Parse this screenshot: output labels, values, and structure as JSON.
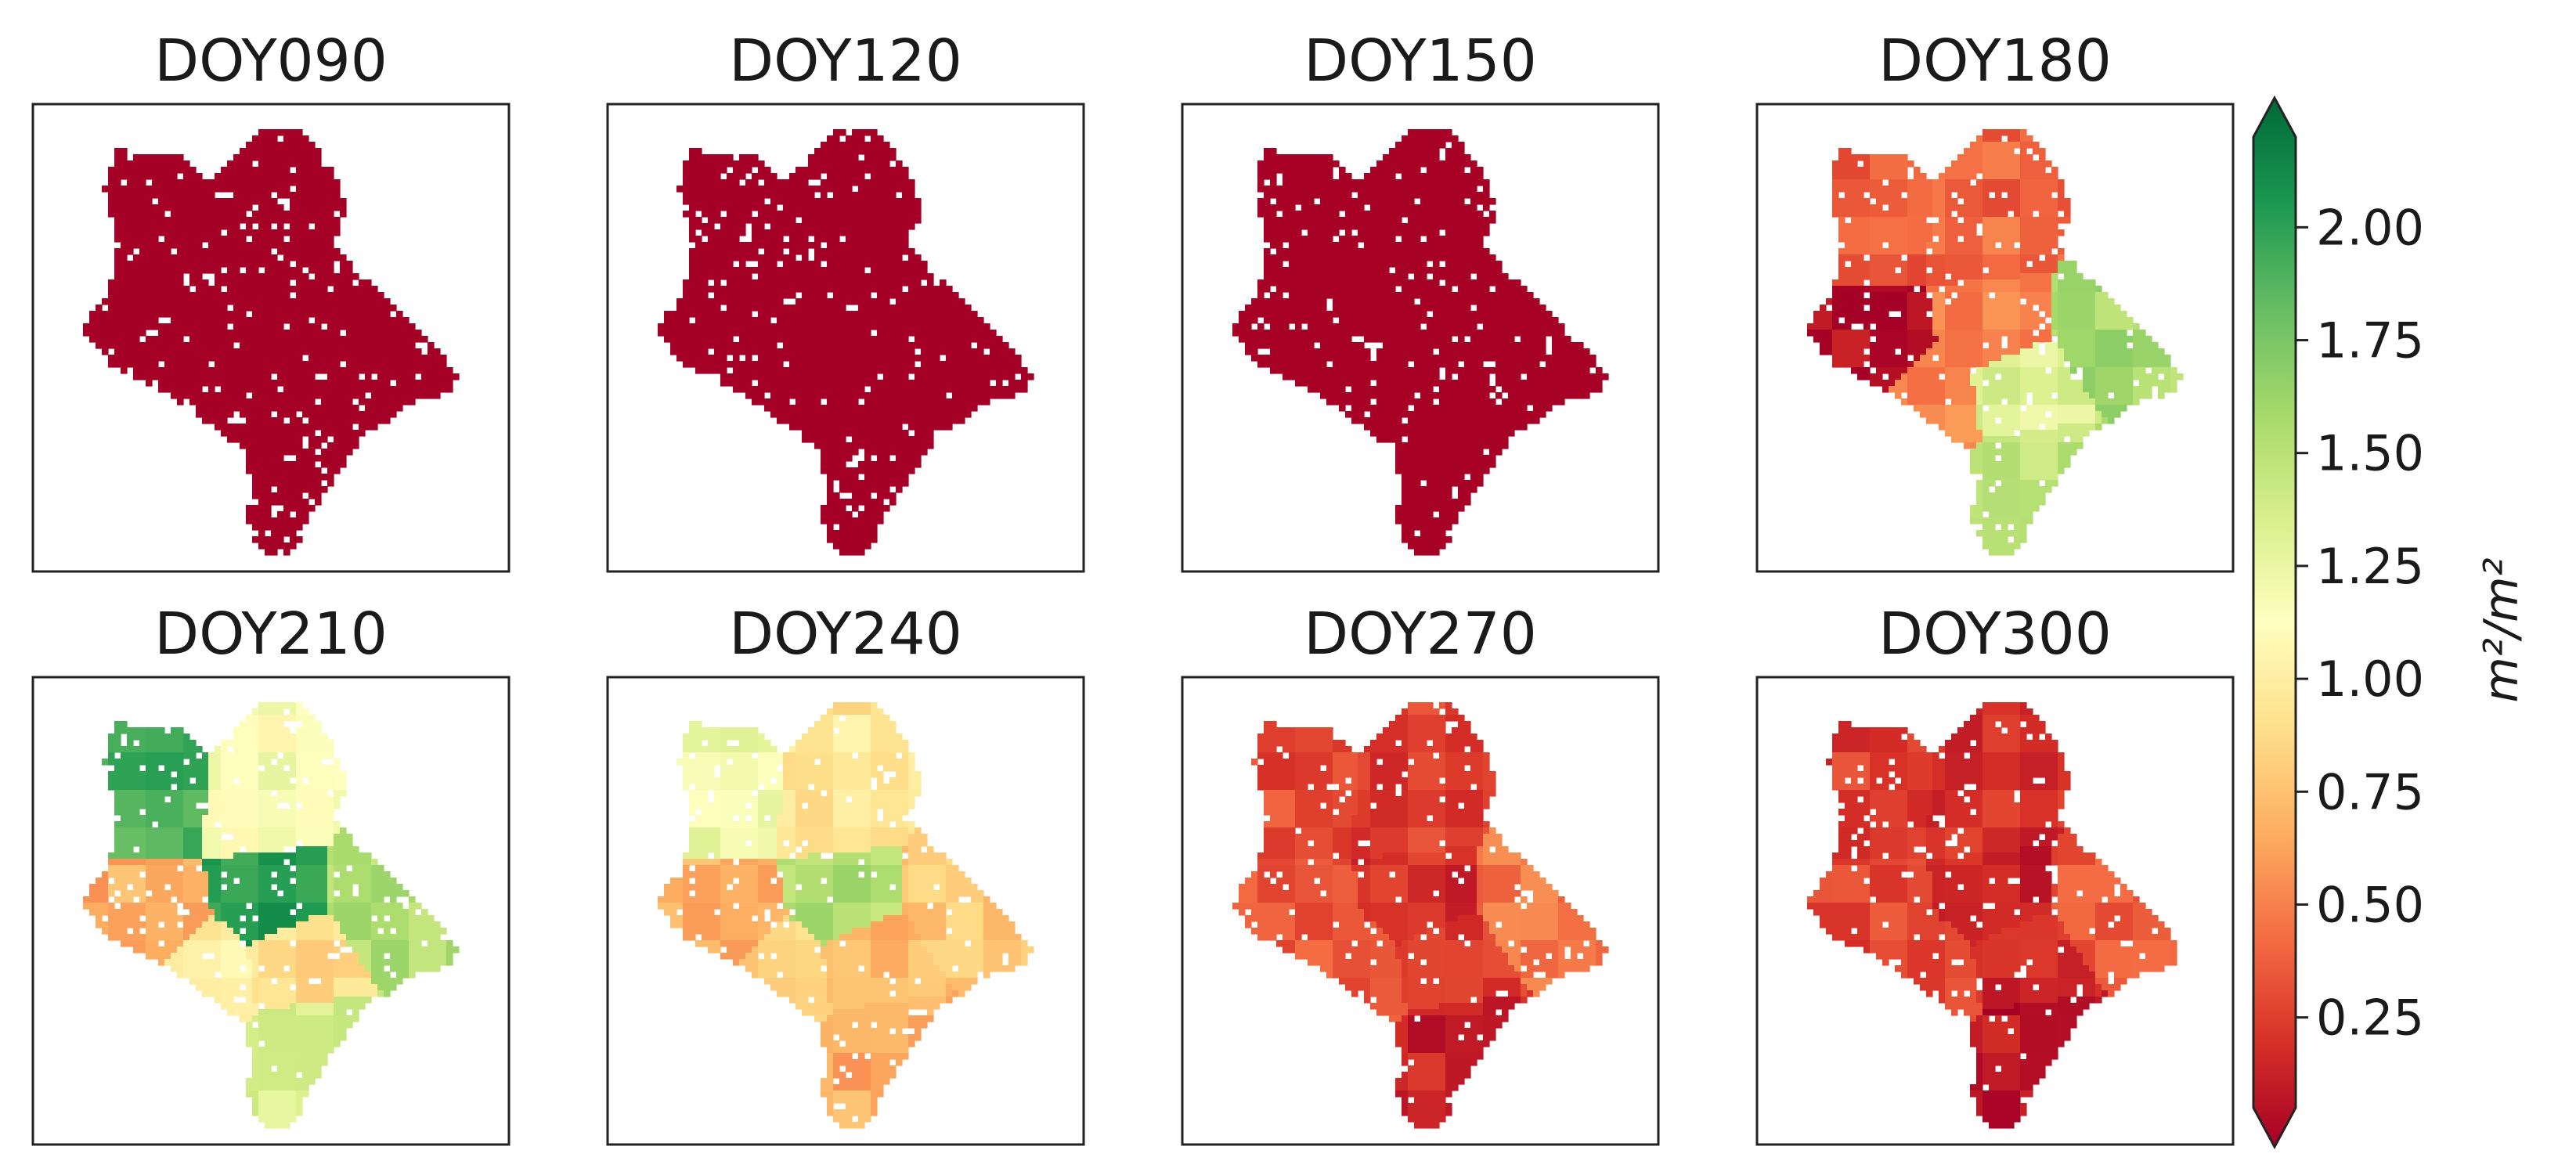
{
  "chart_data": {
    "type": "heatmap",
    "layout": {
      "rows": 2,
      "cols": 4
    },
    "panels": [
      {
        "title": "DOY090",
        "pattern": "uniform",
        "base_value": 0.05,
        "zone_values": [
          0.05,
          0.05,
          0.05,
          0.05,
          0.05,
          0.05,
          0.05,
          0.05
        ]
      },
      {
        "title": "DOY120",
        "pattern": "uniform",
        "base_value": 0.05,
        "zone_values": [
          0.05,
          0.05,
          0.05,
          0.05,
          0.05,
          0.05,
          0.05,
          0.05
        ]
      },
      {
        "title": "DOY150",
        "pattern": "uniform",
        "base_value": 0.06,
        "zone_values": [
          0.06,
          0.06,
          0.06,
          0.06,
          0.08,
          0.06,
          0.06,
          0.06
        ]
      },
      {
        "title": "DOY180",
        "pattern": "zonal",
        "base_value": 0.4,
        "zone_values": [
          0.4,
          0.45,
          0.1,
          0.55,
          1.55,
          1.3,
          1.45,
          0.55
        ]
      },
      {
        "title": "DOY210",
        "pattern": "zonal",
        "base_value": 0.8,
        "zone_values": [
          1.85,
          1.15,
          0.7,
          1.95,
          1.5,
          0.9,
          1.35,
          1.0
        ]
      },
      {
        "title": "DOY240",
        "pattern": "zonal",
        "base_value": 0.85,
        "zone_values": [
          1.2,
          0.95,
          0.7,
          1.5,
          0.8,
          0.75,
          0.7,
          0.85
        ]
      },
      {
        "title": "DOY270",
        "pattern": "zonal",
        "base_value": 0.35,
        "zone_values": [
          0.35,
          0.3,
          0.4,
          0.25,
          0.5,
          0.3,
          0.2,
          0.4
        ]
      },
      {
        "title": "DOY300",
        "pattern": "zonal",
        "base_value": 0.3,
        "zone_values": [
          0.3,
          0.25,
          0.35,
          0.2,
          0.4,
          0.25,
          0.15,
          0.35
        ]
      }
    ],
    "colorbar": {
      "colormap": "RdYlGn",
      "vmin": 0.05,
      "vmax": 2.2,
      "extend": "both",
      "ticks": [
        0.25,
        0.5,
        0.75,
        1.0,
        1.25,
        1.5,
        1.75,
        2.0
      ],
      "tick_labels": [
        "0.25",
        "0.50",
        "0.75",
        "1.00",
        "1.25",
        "1.50",
        "1.75",
        "2.00"
      ],
      "unit_label": "m²/m²",
      "colors": [
        "#a50026",
        "#d73027",
        "#f46d43",
        "#fdae61",
        "#fee08b",
        "#ffffbf",
        "#d9ef8b",
        "#a6d96a",
        "#66bd63",
        "#1a9850",
        "#006837"
      ]
    }
  }
}
